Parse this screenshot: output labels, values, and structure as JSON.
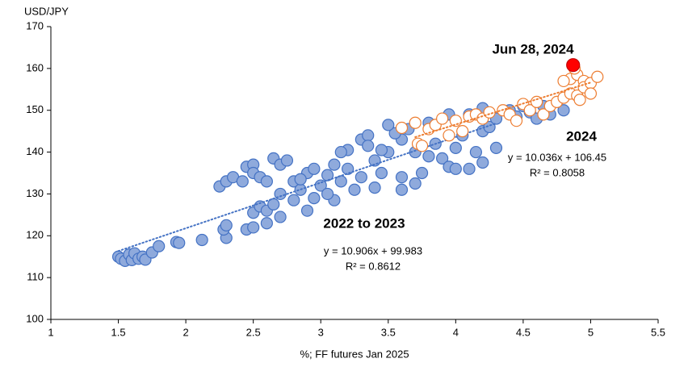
{
  "chart_data": {
    "type": "scatter",
    "y_label": "USD/JPY",
    "x_label": "%; FF futures Jan 2025",
    "xlim": [
      1,
      5.5
    ],
    "ylim": [
      100,
      170
    ],
    "xticks": [
      1,
      1.5,
      2,
      2.5,
      3,
      3.5,
      4,
      4.5,
      5,
      5.5
    ],
    "yticks": [
      100,
      110,
      120,
      130,
      140,
      150,
      160,
      170
    ],
    "series": [
      {
        "name": "2022 to 2023",
        "color": "#4472c4",
        "fill": "#8faadc",
        "x": [
          1.5,
          1.52,
          1.55,
          1.58,
          1.6,
          1.62,
          1.65,
          1.68,
          1.7,
          1.75,
          1.8,
          1.93,
          1.95,
          2.12,
          2.3,
          2.28,
          2.3,
          2.25,
          2.3,
          2.35,
          2.42,
          2.45,
          2.5,
          2.5,
          2.55,
          2.45,
          2.5,
          2.5,
          2.55,
          2.6,
          2.65,
          2.6,
          2.7,
          2.65,
          2.7,
          2.75,
          2.6,
          2.7,
          2.8,
          2.8,
          2.85,
          2.9,
          2.95,
          2.95,
          3.0,
          3.05,
          3.1,
          3.1,
          3.15,
          3.2,
          3.2,
          3.25,
          3.3,
          3.3,
          3.35,
          3.4,
          3.4,
          3.45,
          3.5,
          3.6,
          3.55,
          3.6,
          3.6,
          3.7,
          3.75,
          3.7,
          3.8,
          3.85,
          3.9,
          3.95,
          4.0,
          4.0,
          4.05,
          4.1,
          4.15,
          4.2,
          4.2,
          4.25,
          4.3,
          4.3,
          4.4,
          4.45,
          4.5,
          4.55,
          4.6,
          4.65,
          4.7,
          4.8,
          3.95,
          3.8,
          3.65,
          3.5,
          4.1,
          4.2,
          3.05,
          2.9,
          2.85,
          3.15,
          3.35,
          3.45
        ],
        "y": [
          115,
          114.5,
          114,
          115.5,
          114.2,
          115.8,
          114.5,
          115,
          114.3,
          116,
          117.5,
          118.5,
          118.3,
          119,
          119.5,
          121.5,
          122.5,
          131.8,
          133,
          134,
          133,
          136.5,
          137,
          135,
          134,
          121.5,
          122,
          125.5,
          127,
          126,
          127.5,
          123,
          124.5,
          138.5,
          137,
          138,
          133,
          130,
          133,
          128.5,
          131,
          135,
          136,
          129,
          132,
          134.5,
          137,
          128.5,
          133,
          136,
          140.5,
          131,
          134,
          143,
          144,
          138,
          131.5,
          135,
          140,
          143,
          144.5,
          134,
          131,
          132.5,
          135,
          140,
          139,
          142,
          138.5,
          136.5,
          136,
          141,
          144,
          136,
          140,
          137.5,
          145,
          146,
          141,
          148,
          150,
          148.5,
          151,
          149.5,
          148,
          151,
          149,
          150,
          149,
          147,
          145.5,
          146.5,
          149,
          150.5,
          130,
          126,
          133.5,
          140,
          141.5,
          140.5
        ],
        "trendline": {
          "slope": 10.906,
          "intercept": 99.983,
          "x": [
            1.5,
            4.3
          ]
        },
        "equation": "y = 10.906x + 99.983",
        "r_squared": "R² = 0.8612"
      },
      {
        "name": "2024",
        "color": "#ed7d31",
        "fill": "#ffffff",
        "x": [
          3.6,
          3.7,
          3.72,
          3.75,
          3.8,
          3.85,
          3.9,
          3.95,
          4.0,
          4.05,
          4.1,
          4.15,
          4.2,
          4.25,
          4.35,
          4.4,
          4.45,
          4.5,
          4.55,
          4.6,
          4.65,
          4.7,
          4.75,
          4.8,
          4.85,
          4.85,
          4.9,
          4.9,
          4.95,
          4.95,
          5.0,
          5.0,
          5.05,
          4.88,
          4.92,
          4.8
        ],
        "y": [
          145.8,
          147,
          142,
          141.5,
          145.5,
          146.5,
          148,
          144,
          147.5,
          145,
          148.5,
          149,
          148,
          149.5,
          150,
          149,
          147.5,
          151.5,
          150,
          152,
          149,
          151,
          152,
          153,
          154,
          157.5,
          158.5,
          153.5,
          157,
          155.5,
          156.5,
          154,
          158,
          160,
          152.5,
          157
        ],
        "trendline": {
          "slope": 10.036,
          "intercept": 106.45,
          "x": [
            3.7,
            5.0
          ]
        },
        "equation": "y = 10.036x + 106.45",
        "r_squared": "R² = 0.8058"
      },
      {
        "name": "Jun 28, 2024",
        "color": "#c00000",
        "fill": "#ff0000",
        "x": [
          4.87
        ],
        "y": [
          160.8
        ]
      }
    ]
  }
}
